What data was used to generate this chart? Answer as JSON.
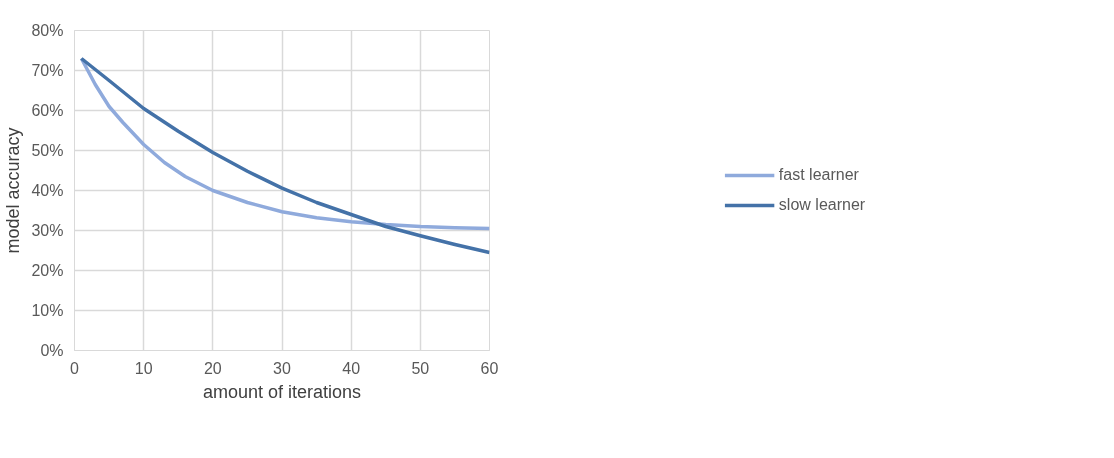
{
  "chart_data": {
    "type": "line",
    "xlabel": "amount of iterations",
    "ylabel": "model accuracy",
    "xlim": [
      0,
      60
    ],
    "xticks": [
      0,
      10,
      20,
      30,
      40,
      50,
      60
    ],
    "ylim": [
      0,
      80
    ],
    "yticks": [
      {
        "value": 0,
        "label": "0%"
      },
      {
        "value": 10,
        "label": "10%"
      },
      {
        "value": 20,
        "label": "20%"
      },
      {
        "value": 30,
        "label": "30%"
      },
      {
        "value": 40,
        "label": "40%"
      },
      {
        "value": 50,
        "label": "50%"
      },
      {
        "value": 60,
        "label": "60%"
      },
      {
        "value": 70,
        "label": "70%"
      },
      {
        "value": 80,
        "label": "80%"
      }
    ],
    "grid": true,
    "legend": "right",
    "marker": "none",
    "line_style": "solid",
    "series": [
      {
        "name": "fast learner",
        "color": "#8faadc",
        "x": [
          1,
          3,
          5,
          7,
          10,
          13,
          16,
          20,
          25,
          30,
          35,
          40,
          45,
          50,
          55,
          60
        ],
        "values": [
          73,
          66.5,
          61,
          57,
          51.5,
          47,
          43.5,
          40,
          37,
          34.7,
          33.2,
          32.2,
          31.5,
          31,
          30.7,
          30.5
        ]
      },
      {
        "name": "slow learner",
        "color": "#4472a8",
        "x": [
          1,
          5,
          10,
          15,
          20,
          25,
          30,
          35,
          40,
          45,
          50,
          55,
          60
        ],
        "values": [
          73,
          67.5,
          60.5,
          54.8,
          49.5,
          44.8,
          40.6,
          37,
          34,
          31,
          28.7,
          26.5,
          24.5
        ]
      }
    ]
  }
}
